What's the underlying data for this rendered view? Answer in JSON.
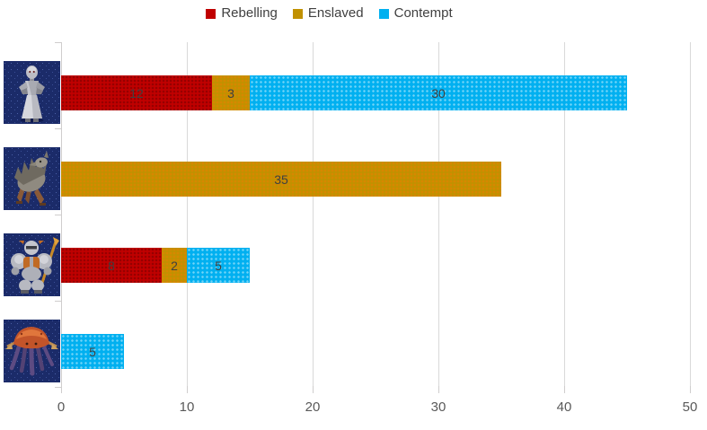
{
  "chart_data": {
    "type": "bar",
    "orientation": "horizontal",
    "stacked": true,
    "title": "",
    "categories": [
      {
        "icon": "golem-statue-icon"
      },
      {
        "icon": "shaggy-beast-icon"
      },
      {
        "icon": "armored-dwarf-icon"
      },
      {
        "icon": "crab-kraken-icon"
      }
    ],
    "series": [
      {
        "name": "Rebelling",
        "color": "#C00000",
        "values": [
          12,
          0,
          8,
          0
        ]
      },
      {
        "name": "Enslaved",
        "color": "#C19100",
        "values": [
          3,
          35,
          2,
          0
        ]
      },
      {
        "name": "Contempt",
        "color": "#00B0F0",
        "values": [
          30,
          0,
          5,
          5
        ]
      }
    ],
    "xlim": [
      0,
      50
    ],
    "xticks": [
      0,
      10,
      20,
      30,
      40,
      50
    ],
    "legend_position": "top",
    "grid": true,
    "data_labels": true,
    "colors": {
      "grid": "#D9D9D9",
      "axis": "#CFCDCD",
      "tick_label": "#595959",
      "data_label": "#404040",
      "legend_label": "#404040"
    }
  }
}
